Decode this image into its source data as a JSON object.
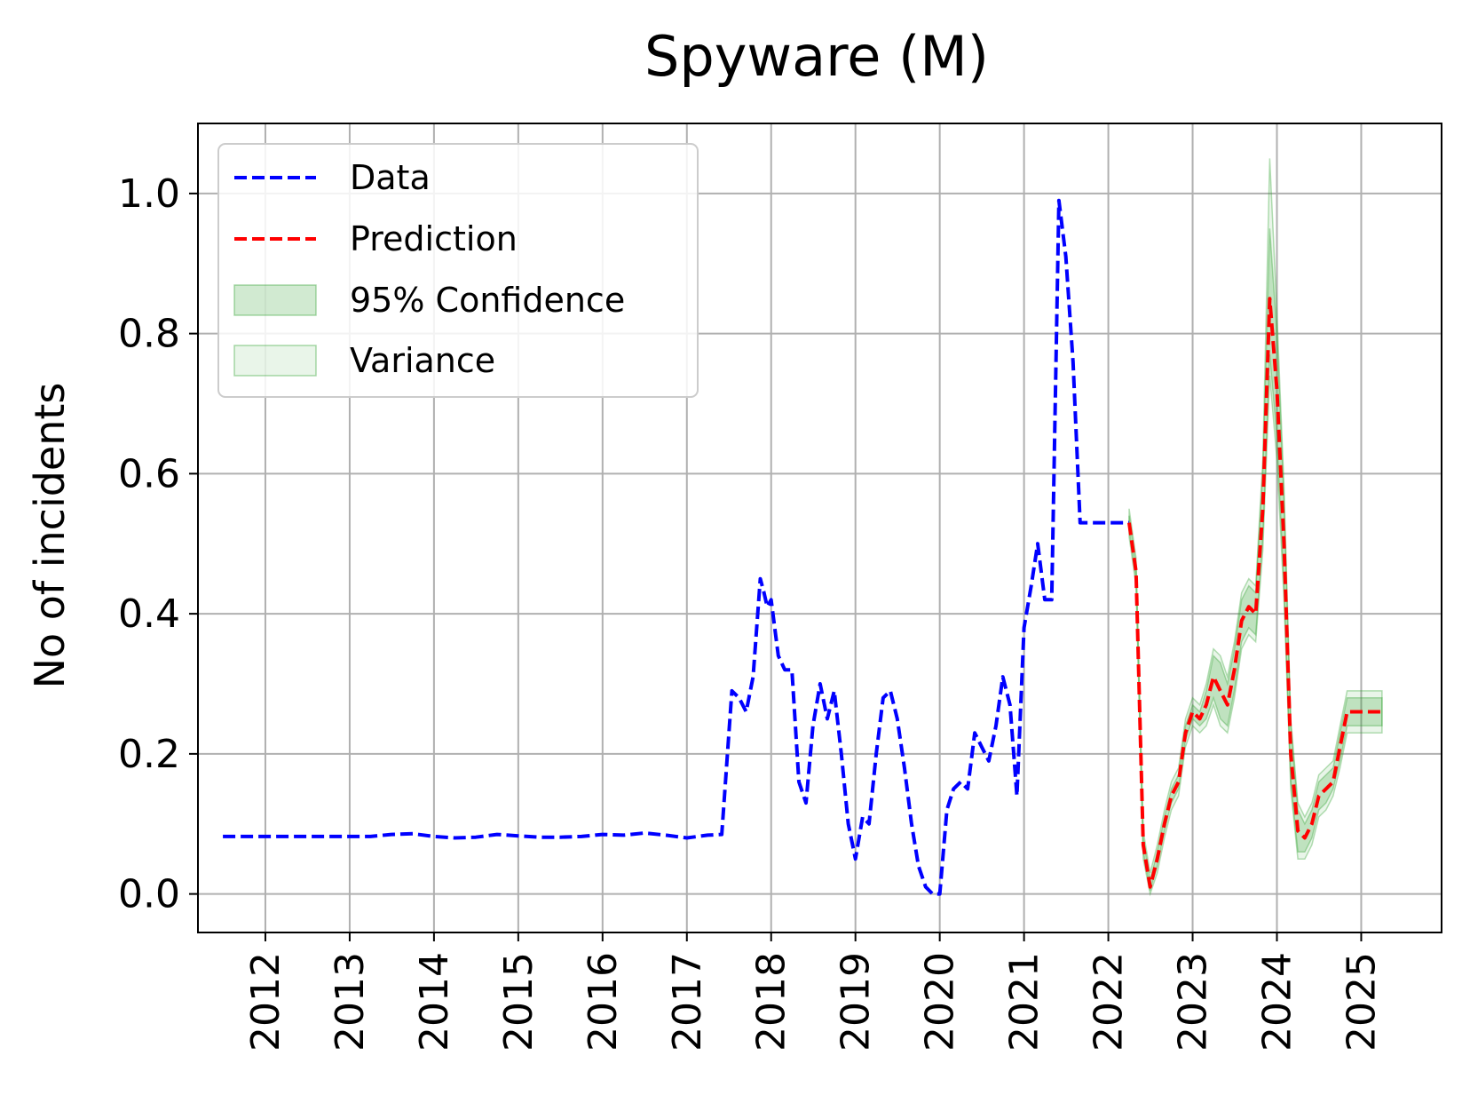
{
  "chart_data": {
    "type": "line",
    "title": "Spyware (M)",
    "xlabel": "",
    "ylabel": "No of incidents",
    "xlim": [
      "2011-03-15",
      "2025-12-15"
    ],
    "ylim": [
      -0.055,
      1.1
    ],
    "grid": true,
    "legend_position": "top-left",
    "x_ticks": [
      "2012",
      "2013",
      "2014",
      "2015",
      "2016",
      "2017",
      "2018",
      "2019",
      "2020",
      "2021",
      "2022",
      "2023",
      "2024",
      "2025"
    ],
    "y_ticks": [
      "0.0",
      "0.2",
      "0.4",
      "0.6",
      "0.8",
      "1.0"
    ],
    "legend": [
      {
        "label": "Data",
        "kind": "line",
        "color": "#0000ff"
      },
      {
        "label": "Prediction",
        "kind": "line",
        "color": "#ff0000"
      },
      {
        "label": "95% Confidence",
        "kind": "band",
        "color": "#2ca02c"
      },
      {
        "label": "Variance",
        "kind": "band",
        "color": "#2ca02c"
      }
    ],
    "series": [
      {
        "name": "Data",
        "color": "#0000ff",
        "style": "dashed",
        "x": [
          "2011-07-01",
          "2011-10-01",
          "2012-01-01",
          "2012-04-01",
          "2012-07-01",
          "2012-10-01",
          "2013-01-01",
          "2013-04-01",
          "2013-07-01",
          "2013-10-01",
          "2014-01-01",
          "2014-04-01",
          "2014-07-01",
          "2014-10-01",
          "2015-01-01",
          "2015-04-01",
          "2015-07-01",
          "2015-10-01",
          "2016-01-01",
          "2016-04-01",
          "2016-07-01",
          "2016-10-01",
          "2017-01-01",
          "2017-04-01",
          "2017-06-01",
          "2017-07-15",
          "2017-08-15",
          "2017-09-15",
          "2017-10-15",
          "2017-11-15",
          "2017-12-01",
          "2017-12-15",
          "2018-01-01",
          "2018-02-01",
          "2018-03-01",
          "2018-04-01",
          "2018-05-01",
          "2018-06-01",
          "2018-07-01",
          "2018-08-01",
          "2018-09-01",
          "2018-10-01",
          "2018-11-01",
          "2018-12-01",
          "2019-01-01",
          "2019-02-01",
          "2019-03-01",
          "2019-04-01",
          "2019-05-01",
          "2019-06-01",
          "2019-07-01",
          "2019-08-01",
          "2019-09-01",
          "2019-10-01",
          "2019-11-01",
          "2019-12-01",
          "2020-01-01",
          "2020-02-01",
          "2020-03-01",
          "2020-04-01",
          "2020-05-01",
          "2020-06-01",
          "2020-07-01",
          "2020-08-01",
          "2020-09-01",
          "2020-10-01",
          "2020-11-01",
          "2020-12-01",
          "2021-01-01",
          "2021-02-01",
          "2021-03-01",
          "2021-04-01",
          "2021-05-01",
          "2021-06-01",
          "2021-07-01",
          "2021-08-01",
          "2021-09-01",
          "2021-10-01",
          "2021-11-01",
          "2021-12-01",
          "2022-01-01",
          "2022-02-01",
          "2022-03-01",
          "2022-04-01"
        ],
        "values": [
          0.082,
          0.082,
          0.082,
          0.082,
          0.082,
          0.082,
          0.082,
          0.082,
          0.085,
          0.086,
          0.082,
          0.08,
          0.081,
          0.085,
          0.083,
          0.081,
          0.081,
          0.082,
          0.085,
          0.084,
          0.087,
          0.084,
          0.08,
          0.084,
          0.085,
          0.29,
          0.28,
          0.26,
          0.31,
          0.45,
          0.43,
          0.41,
          0.42,
          0.34,
          0.32,
          0.32,
          0.16,
          0.13,
          0.24,
          0.3,
          0.25,
          0.29,
          0.2,
          0.1,
          0.05,
          0.11,
          0.1,
          0.2,
          0.28,
          0.29,
          0.25,
          0.18,
          0.1,
          0.04,
          0.01,
          0.0,
          0.0,
          0.12,
          0.15,
          0.16,
          0.15,
          0.23,
          0.21,
          0.19,
          0.24,
          0.31,
          0.27,
          0.14,
          0.38,
          0.44,
          0.5,
          0.42,
          0.42,
          0.99,
          0.91,
          0.76,
          0.53,
          0.53,
          0.53,
          0.53,
          0.53,
          0.53,
          0.53,
          0.53
        ]
      },
      {
        "name": "Prediction",
        "color": "#ff0000",
        "style": "dashed",
        "x": [
          "2022-04-01",
          "2022-05-01",
          "2022-06-01",
          "2022-07-01",
          "2022-08-01",
          "2022-09-01",
          "2022-10-01",
          "2022-11-01",
          "2022-12-01",
          "2023-01-01",
          "2023-02-01",
          "2023-03-01",
          "2023-04-01",
          "2023-05-01",
          "2023-06-01",
          "2023-07-01",
          "2023-08-01",
          "2023-09-01",
          "2023-10-01",
          "2023-11-01",
          "2023-12-01",
          "2024-01-01",
          "2024-02-01",
          "2024-03-01",
          "2024-04-01",
          "2024-05-01",
          "2024-06-01",
          "2024-07-01",
          "2024-08-01",
          "2024-09-01",
          "2024-10-01",
          "2024-11-01",
          "2024-12-01",
          "2025-01-01",
          "2025-02-01",
          "2025-03-01",
          "2025-04-01"
        ],
        "values": [
          0.53,
          0.46,
          0.07,
          0.01,
          0.05,
          0.1,
          0.14,
          0.16,
          0.23,
          0.26,
          0.25,
          0.27,
          0.31,
          0.29,
          0.27,
          0.32,
          0.39,
          0.41,
          0.4,
          0.55,
          0.85,
          0.72,
          0.5,
          0.2,
          0.09,
          0.08,
          0.1,
          0.14,
          0.15,
          0.16,
          0.21,
          0.26,
          0.26,
          0.26,
          0.26,
          0.26,
          0.26
        ]
      }
    ],
    "bands": [
      {
        "name": "95% Confidence",
        "color": "#2ca02c",
        "opacity": 0.22,
        "x": [
          "2022-04-01",
          "2022-05-01",
          "2022-06-01",
          "2022-07-01",
          "2022-08-01",
          "2022-09-01",
          "2022-10-01",
          "2022-11-01",
          "2022-12-01",
          "2023-01-01",
          "2023-02-01",
          "2023-03-01",
          "2023-04-01",
          "2023-05-01",
          "2023-06-01",
          "2023-07-01",
          "2023-08-01",
          "2023-09-01",
          "2023-10-01",
          "2023-11-01",
          "2023-12-01",
          "2024-01-01",
          "2024-02-01",
          "2024-03-01",
          "2024-04-01",
          "2024-05-01",
          "2024-06-01",
          "2024-07-01",
          "2024-08-01",
          "2024-09-01",
          "2024-10-01",
          "2024-11-01",
          "2024-12-01",
          "2025-01-01",
          "2025-02-01",
          "2025-03-01",
          "2025-04-01"
        ],
        "lower": [
          0.52,
          0.45,
          0.06,
          0.005,
          0.04,
          0.09,
          0.13,
          0.15,
          0.22,
          0.25,
          0.24,
          0.25,
          0.28,
          0.25,
          0.24,
          0.29,
          0.36,
          0.38,
          0.37,
          0.51,
          0.77,
          0.65,
          0.44,
          0.16,
          0.06,
          0.06,
          0.08,
          0.12,
          0.13,
          0.15,
          0.19,
          0.24,
          0.24,
          0.24,
          0.24,
          0.24,
          0.24
        ],
        "upper": [
          0.54,
          0.47,
          0.08,
          0.02,
          0.06,
          0.11,
          0.15,
          0.17,
          0.24,
          0.27,
          0.26,
          0.29,
          0.34,
          0.33,
          0.3,
          0.35,
          0.42,
          0.44,
          0.43,
          0.6,
          0.95,
          0.8,
          0.56,
          0.24,
          0.12,
          0.1,
          0.12,
          0.16,
          0.17,
          0.18,
          0.23,
          0.28,
          0.28,
          0.28,
          0.28,
          0.28,
          0.28
        ]
      },
      {
        "name": "Variance",
        "color": "#2ca02c",
        "opacity": 0.1,
        "x": [
          "2022-04-01",
          "2022-05-01",
          "2022-06-01",
          "2022-07-01",
          "2022-08-01",
          "2022-09-01",
          "2022-10-01",
          "2022-11-01",
          "2022-12-01",
          "2023-01-01",
          "2023-02-01",
          "2023-03-01",
          "2023-04-01",
          "2023-05-01",
          "2023-06-01",
          "2023-07-01",
          "2023-08-01",
          "2023-09-01",
          "2023-10-01",
          "2023-11-01",
          "2023-12-01",
          "2024-01-01",
          "2024-02-01",
          "2024-03-01",
          "2024-04-01",
          "2024-05-01",
          "2024-06-01",
          "2024-07-01",
          "2024-08-01",
          "2024-09-01",
          "2024-10-01",
          "2024-11-01",
          "2024-12-01",
          "2025-01-01",
          "2025-02-01",
          "2025-03-01",
          "2025-04-01"
        ],
        "lower": [
          0.51,
          0.44,
          0.05,
          0.0,
          0.03,
          0.08,
          0.12,
          0.14,
          0.21,
          0.24,
          0.23,
          0.24,
          0.27,
          0.24,
          0.23,
          0.28,
          0.35,
          0.37,
          0.36,
          0.49,
          0.74,
          0.62,
          0.42,
          0.15,
          0.05,
          0.05,
          0.07,
          0.11,
          0.12,
          0.14,
          0.18,
          0.23,
          0.23,
          0.23,
          0.23,
          0.23,
          0.23
        ],
        "upper": [
          0.55,
          0.48,
          0.09,
          0.03,
          0.07,
          0.12,
          0.16,
          0.18,
          0.25,
          0.28,
          0.27,
          0.3,
          0.35,
          0.34,
          0.31,
          0.36,
          0.43,
          0.45,
          0.44,
          0.62,
          1.05,
          0.83,
          0.58,
          0.25,
          0.13,
          0.11,
          0.13,
          0.17,
          0.18,
          0.19,
          0.24,
          0.29,
          0.29,
          0.29,
          0.29,
          0.29,
          0.29
        ]
      }
    ]
  }
}
